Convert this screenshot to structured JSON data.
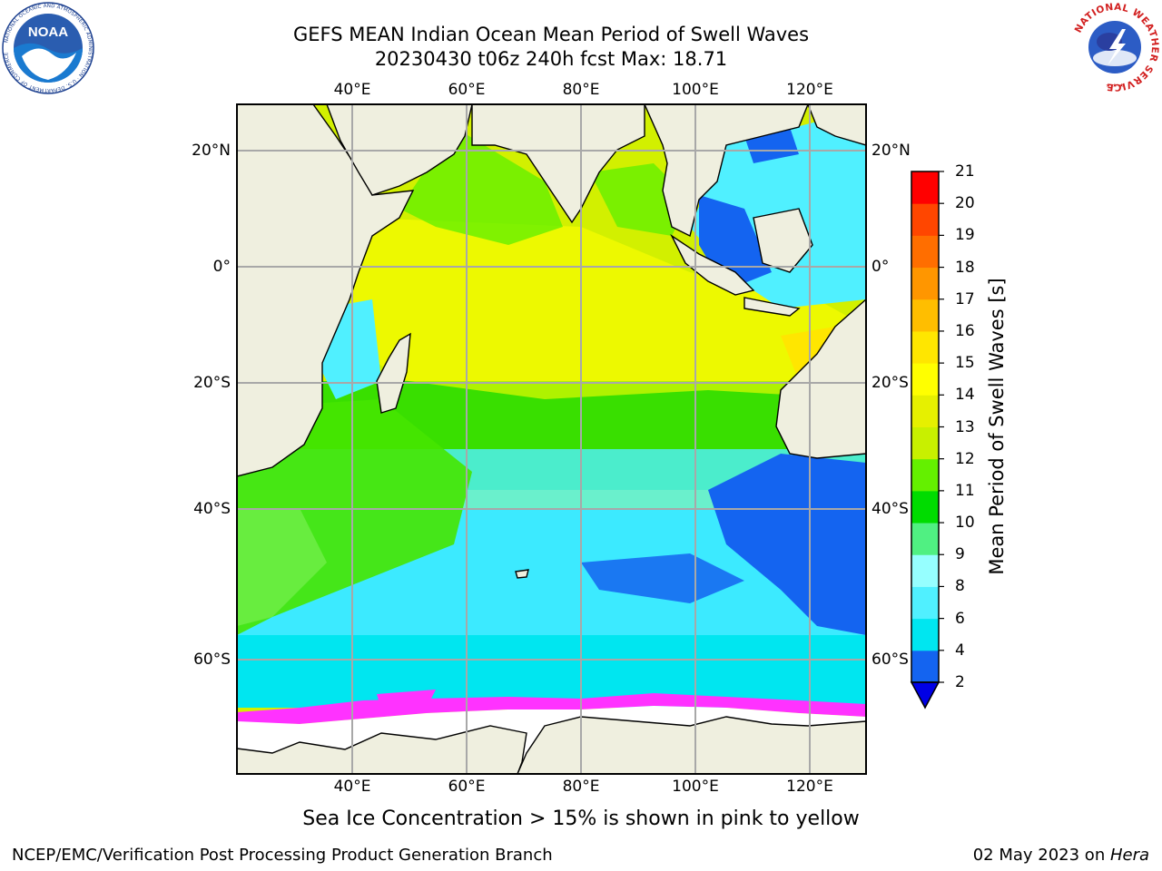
{
  "title": {
    "line1": "GEFS MEAN Indian Ocean Mean Period of Swell Waves",
    "line2": "20230430 t06z 240h fcst   Max: 18.71"
  },
  "max_value": 18.71,
  "logos": {
    "noaa": {
      "text": "NOAA",
      "ring_text": "NATIONAL OCEANIC AND ATMOSPHERIC ADMINISTRATION · U.S. DEPARTMENT OF COMMERCE",
      "icon": "noaa-logo"
    },
    "nws": {
      "ring_text": "NATIONAL WEATHER SERVICE",
      "icon": "nws-logo"
    }
  },
  "map": {
    "lon_labels": [
      "40°E",
      "60°E",
      "80°E",
      "100°E",
      "120°E"
    ],
    "lat_labels": [
      "20°N",
      "0°",
      "20°S",
      "40°S",
      "60°S"
    ],
    "land_color": "#efefdf",
    "grid": true,
    "region": "Indian Ocean"
  },
  "colorbar": {
    "label": "Mean Period of Swell Waves [s]",
    "ticks": [
      "2",
      "4",
      "6",
      "8",
      "9",
      "10",
      "11",
      "12",
      "13",
      "14",
      "15",
      "16",
      "17",
      "18",
      "19",
      "20",
      "21"
    ],
    "colors": [
      "#1464f0",
      "#00e6f0",
      "#50f0ff",
      "#96ffff",
      "#50f082",
      "#00dc00",
      "#64f000",
      "#c8f000",
      "#e6f000",
      "#ffff00",
      "#ffe600",
      "#ffbe00",
      "#ff9600",
      "#ff6e00",
      "#ff4600",
      "#ff0000"
    ],
    "under_color": "#0000e6"
  },
  "ice_note": "Sea Ice Concentration > 15% is shown in pink to yellow",
  "ice_colors": [
    "#ff32ff",
    "#ffaa64",
    "#ffc850"
  ],
  "footer": {
    "left": "NCEP/EMC/Verification Post Processing Product Generation Branch",
    "date": "02 May 2023 on ",
    "machine": "Hera"
  }
}
